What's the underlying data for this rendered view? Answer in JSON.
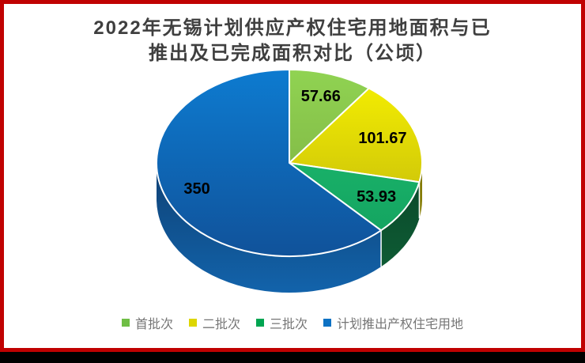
{
  "frame": {
    "border_color": "#c00101",
    "bottom_bar_color": "#000000",
    "background": "#ffffff"
  },
  "title": {
    "line1": "2022年无锡计划供应产权住宅用地面积与已",
    "line2": "推出及已完成面积对比（公顷）",
    "color": "#3f3f3f"
  },
  "chart_data": {
    "type": "pie",
    "style": "3d",
    "title": "2022年无锡计划供应产权住宅用地面积与已推出及已完成面积对比（公顷）",
    "unit": "公顷",
    "start_angle_deg": 0,
    "direction": "clockwise",
    "legend_position": "bottom",
    "data_labels_shown": true,
    "categories": [
      "首批次",
      "二批次",
      "三批次",
      "计划推出产权住宅用地"
    ],
    "values": [
      57.66,
      101.67,
      53.93,
      350
    ],
    "slices": [
      {
        "label": "首批次",
        "value": 57.66,
        "data_label": "57.66",
        "color_top": "#90d352",
        "color_bottom": "#79a83e",
        "side_color_top": "#5b7d26",
        "side_color_bottom": "#6c9330",
        "legend_color": "#6fbe45"
      },
      {
        "label": "二批次",
        "value": 101.67,
        "data_label": "101.67",
        "color_top": "#f8f200",
        "color_bottom": "#bab00e",
        "side_color_top": "#807807",
        "side_color_bottom": "#948b09",
        "legend_color": "#ddd601"
      },
      {
        "label": "三批次",
        "value": 53.93,
        "data_label": "53.93",
        "color_top": "#1ec173",
        "color_bottom": "#13a05e",
        "side_color_top": "#0a4728",
        "side_color_bottom": "#0f6038",
        "legend_color": "#00a551"
      },
      {
        "label": "计划推出产权住宅用地",
        "value": 350,
        "data_label": "350",
        "color_top": "#0d7bd0",
        "color_bottom": "#10529a",
        "side_color_top": "#0f4174",
        "side_color_bottom": "#1263ab",
        "legend_color": "#0d72c4"
      }
    ],
    "label_color": "#000000",
    "divider_color": "#ffffff"
  }
}
